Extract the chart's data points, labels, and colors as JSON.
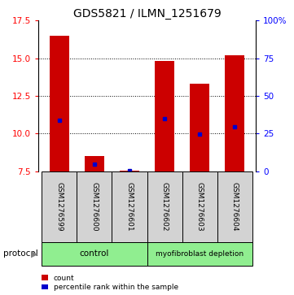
{
  "title": "GDS5821 / ILMN_1251679",
  "samples": [
    "GSM1276599",
    "GSM1276600",
    "GSM1276601",
    "GSM1276602",
    "GSM1276603",
    "GSM1276604"
  ],
  "counts": [
    16.5,
    8.5,
    7.52,
    14.8,
    13.3,
    15.2
  ],
  "percentile_ranks": [
    10.9,
    7.95,
    7.52,
    11.0,
    9.95,
    10.45
  ],
  "ymin": 7.5,
  "ymax": 17.5,
  "yticks_left": [
    7.5,
    10.0,
    12.5,
    15.0,
    17.5
  ],
  "yticks_right": [
    0,
    25,
    50,
    75,
    100
  ],
  "bar_color": "#CC0000",
  "percentile_color": "#0000CC",
  "bar_width": 0.55,
  "title_fontsize": 10,
  "tick_fontsize": 7.5,
  "sample_fontsize": 6.5,
  "sample_box_color": "#D3D3D3",
  "group_color": "#90EE90",
  "legend_count_label": "count",
  "legend_percentile_label": "percentile rank within the sample"
}
